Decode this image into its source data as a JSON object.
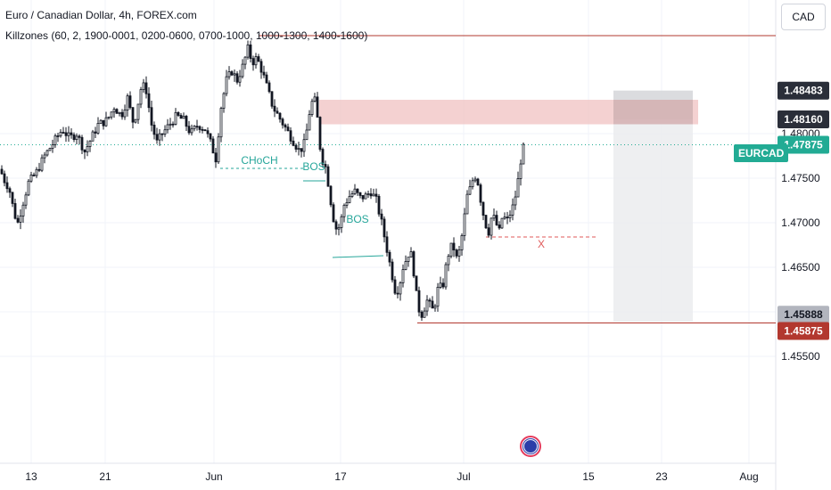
{
  "header": {
    "title": "Euro / Canadian Dollar, 4h, FOREX.com",
    "indicator": "Killzones (60, 2, 1900-0001, 0200-0600, 0700-1000, 1000-1300, 1400-1600)"
  },
  "currency_button": "CAD",
  "symbol_tag": "EURCAD",
  "colors": {
    "up": "#26a69a",
    "down": "#ef5350",
    "candle": "#131722",
    "structure": "#26a69a",
    "level": "#b2382f",
    "zone": "#f0c1c1",
    "range_box": "#ebecef",
    "grid": "#f0f3fa"
  },
  "chart_data": {
    "type": "candlestick",
    "instrument": "EURCAD",
    "timeframe": "4h",
    "source": "FOREX.com",
    "y_range": [
      1.452,
      1.4902
    ],
    "x_tick_labels": [
      "13",
      "21",
      "Jun",
      "17",
      "Jul",
      "15",
      "23",
      "Aug"
    ],
    "y_tick_labels": [
      "1.48000",
      "1.47500",
      "1.47000",
      "1.46500",
      "1.46000",
      "1.45500"
    ],
    "price_labels": [
      {
        "text": "1.48483",
        "value": 1.48483
      },
      {
        "text": "1.48160",
        "value": 1.4816
      },
      {
        "text": "1.47875",
        "value": 1.47875
      },
      {
        "text": "1.45888",
        "value": 1.45888
      },
      {
        "text": "1.45875",
        "value": 1.45875
      }
    ],
    "current_price": 1.47875,
    "close_path": [
      [
        0,
        1.476
      ],
      [
        6,
        1.4745
      ],
      [
        10,
        1.474
      ],
      [
        16,
        1.471
      ],
      [
        20,
        1.47
      ],
      [
        25,
        1.472
      ],
      [
        32,
        1.4745
      ],
      [
        40,
        1.4755
      ],
      [
        50,
        1.4775
      ],
      [
        60,
        1.479
      ],
      [
        70,
        1.4805
      ],
      [
        78,
        1.4795
      ],
      [
        86,
        1.48
      ],
      [
        95,
        1.478
      ],
      [
        100,
        1.479
      ],
      [
        110,
        1.481
      ],
      [
        120,
        1.4815
      ],
      [
        128,
        1.483
      ],
      [
        136,
        1.482
      ],
      [
        143,
        1.484
      ],
      [
        150,
        1.481
      ],
      [
        158,
        1.485
      ],
      [
        163,
        1.4855
      ],
      [
        170,
        1.481
      ],
      [
        176,
        1.479
      ],
      [
        182,
        1.48
      ],
      [
        190,
        1.481
      ],
      [
        198,
        1.482
      ],
      [
        206,
        1.4815
      ],
      [
        214,
        1.48
      ],
      [
        222,
        1.481
      ],
      [
        230,
        1.4805
      ],
      [
        236,
        1.479
      ],
      [
        242,
        1.4772
      ],
      [
        248,
        1.483
      ],
      [
        254,
        1.486
      ],
      [
        260,
        1.487
      ],
      [
        266,
        1.486
      ],
      [
        272,
        1.4875
      ],
      [
        278,
        1.4895
      ],
      [
        283,
        1.488
      ],
      [
        288,
        1.4885
      ],
      [
        294,
        1.487
      ],
      [
        300,
        1.485
      ],
      [
        306,
        1.483
      ],
      [
        312,
        1.482
      ],
      [
        318,
        1.481
      ],
      [
        324,
        1.48
      ],
      [
        330,
        1.479
      ],
      [
        336,
        1.478
      ],
      [
        342,
        1.479
      ],
      [
        348,
        1.483
      ],
      [
        352,
        1.484
      ],
      [
        355,
        1.483
      ],
      [
        358,
        1.479
      ],
      [
        362,
        1.477
      ],
      [
        366,
        1.476
      ],
      [
        370,
        1.473
      ],
      [
        374,
        1.4705
      ],
      [
        378,
        1.469
      ],
      [
        382,
        1.47
      ],
      [
        386,
        1.472
      ],
      [
        392,
        1.473
      ],
      [
        398,
        1.4735
      ],
      [
        404,
        1.4728
      ],
      [
        410,
        1.473
      ],
      [
        416,
        1.4735
      ],
      [
        422,
        1.4725
      ],
      [
        428,
        1.47
      ],
      [
        432,
        1.468
      ],
      [
        436,
        1.466
      ],
      [
        440,
        1.464
      ],
      [
        444,
        1.462
      ],
      [
        448,
        1.463
      ],
      [
        452,
        1.465
      ],
      [
        456,
        1.466
      ],
      [
        460,
        1.467
      ],
      [
        464,
        1.4645
      ],
      [
        468,
        1.461
      ],
      [
        472,
        1.4595
      ],
      [
        476,
        1.4605
      ],
      [
        480,
        1.4615
      ],
      [
        484,
        1.46
      ],
      [
        488,
        1.461
      ],
      [
        492,
        1.463
      ],
      [
        496,
        1.4625
      ],
      [
        500,
        1.465
      ],
      [
        504,
        1.467
      ],
      [
        508,
        1.4675
      ],
      [
        512,
        1.466
      ],
      [
        516,
        1.467
      ],
      [
        520,
        1.47
      ],
      [
        524,
        1.473
      ],
      [
        528,
        1.474
      ],
      [
        532,
        1.4755
      ],
      [
        536,
        1.4745
      ],
      [
        540,
        1.472
      ],
      [
        544,
        1.47
      ],
      [
        548,
        1.469
      ],
      [
        552,
        1.471
      ],
      [
        556,
        1.47
      ],
      [
        560,
        1.469
      ],
      [
        564,
        1.471
      ],
      [
        568,
        1.47
      ],
      [
        572,
        1.471
      ],
      [
        576,
        1.472
      ],
      [
        580,
        1.474
      ],
      [
        584,
        1.477
      ],
      [
        588,
        1.47875
      ]
    ],
    "annotations": [
      {
        "type": "label",
        "text": "CHoCH",
        "x": 291,
        "value": 1.477
      },
      {
        "type": "label",
        "text": "BOS",
        "x": 352,
        "value": 1.4763
      },
      {
        "type": "label",
        "text": "BOS",
        "x": 401,
        "value": 1.4704
      },
      {
        "type": "label",
        "text": "X",
        "x": 607,
        "value": 1.4676
      },
      {
        "type": "zone",
        "x1": 358,
        "x2": 783,
        "y_top": 1.4838,
        "y_bottom": 1.48105
      },
      {
        "type": "range_box",
        "x1": 688,
        "x2": 777,
        "y_top": 1.48483,
        "y_bottom": 1.45888
      },
      {
        "type": "hline",
        "x1": 290,
        "x2": 870,
        "value": 1.491
      },
      {
        "type": "hline",
        "x1": 468,
        "x2": 870,
        "value": 1.45875
      },
      {
        "type": "dashed",
        "x1": 545,
        "x2": 670,
        "value": 1.4684
      }
    ]
  }
}
